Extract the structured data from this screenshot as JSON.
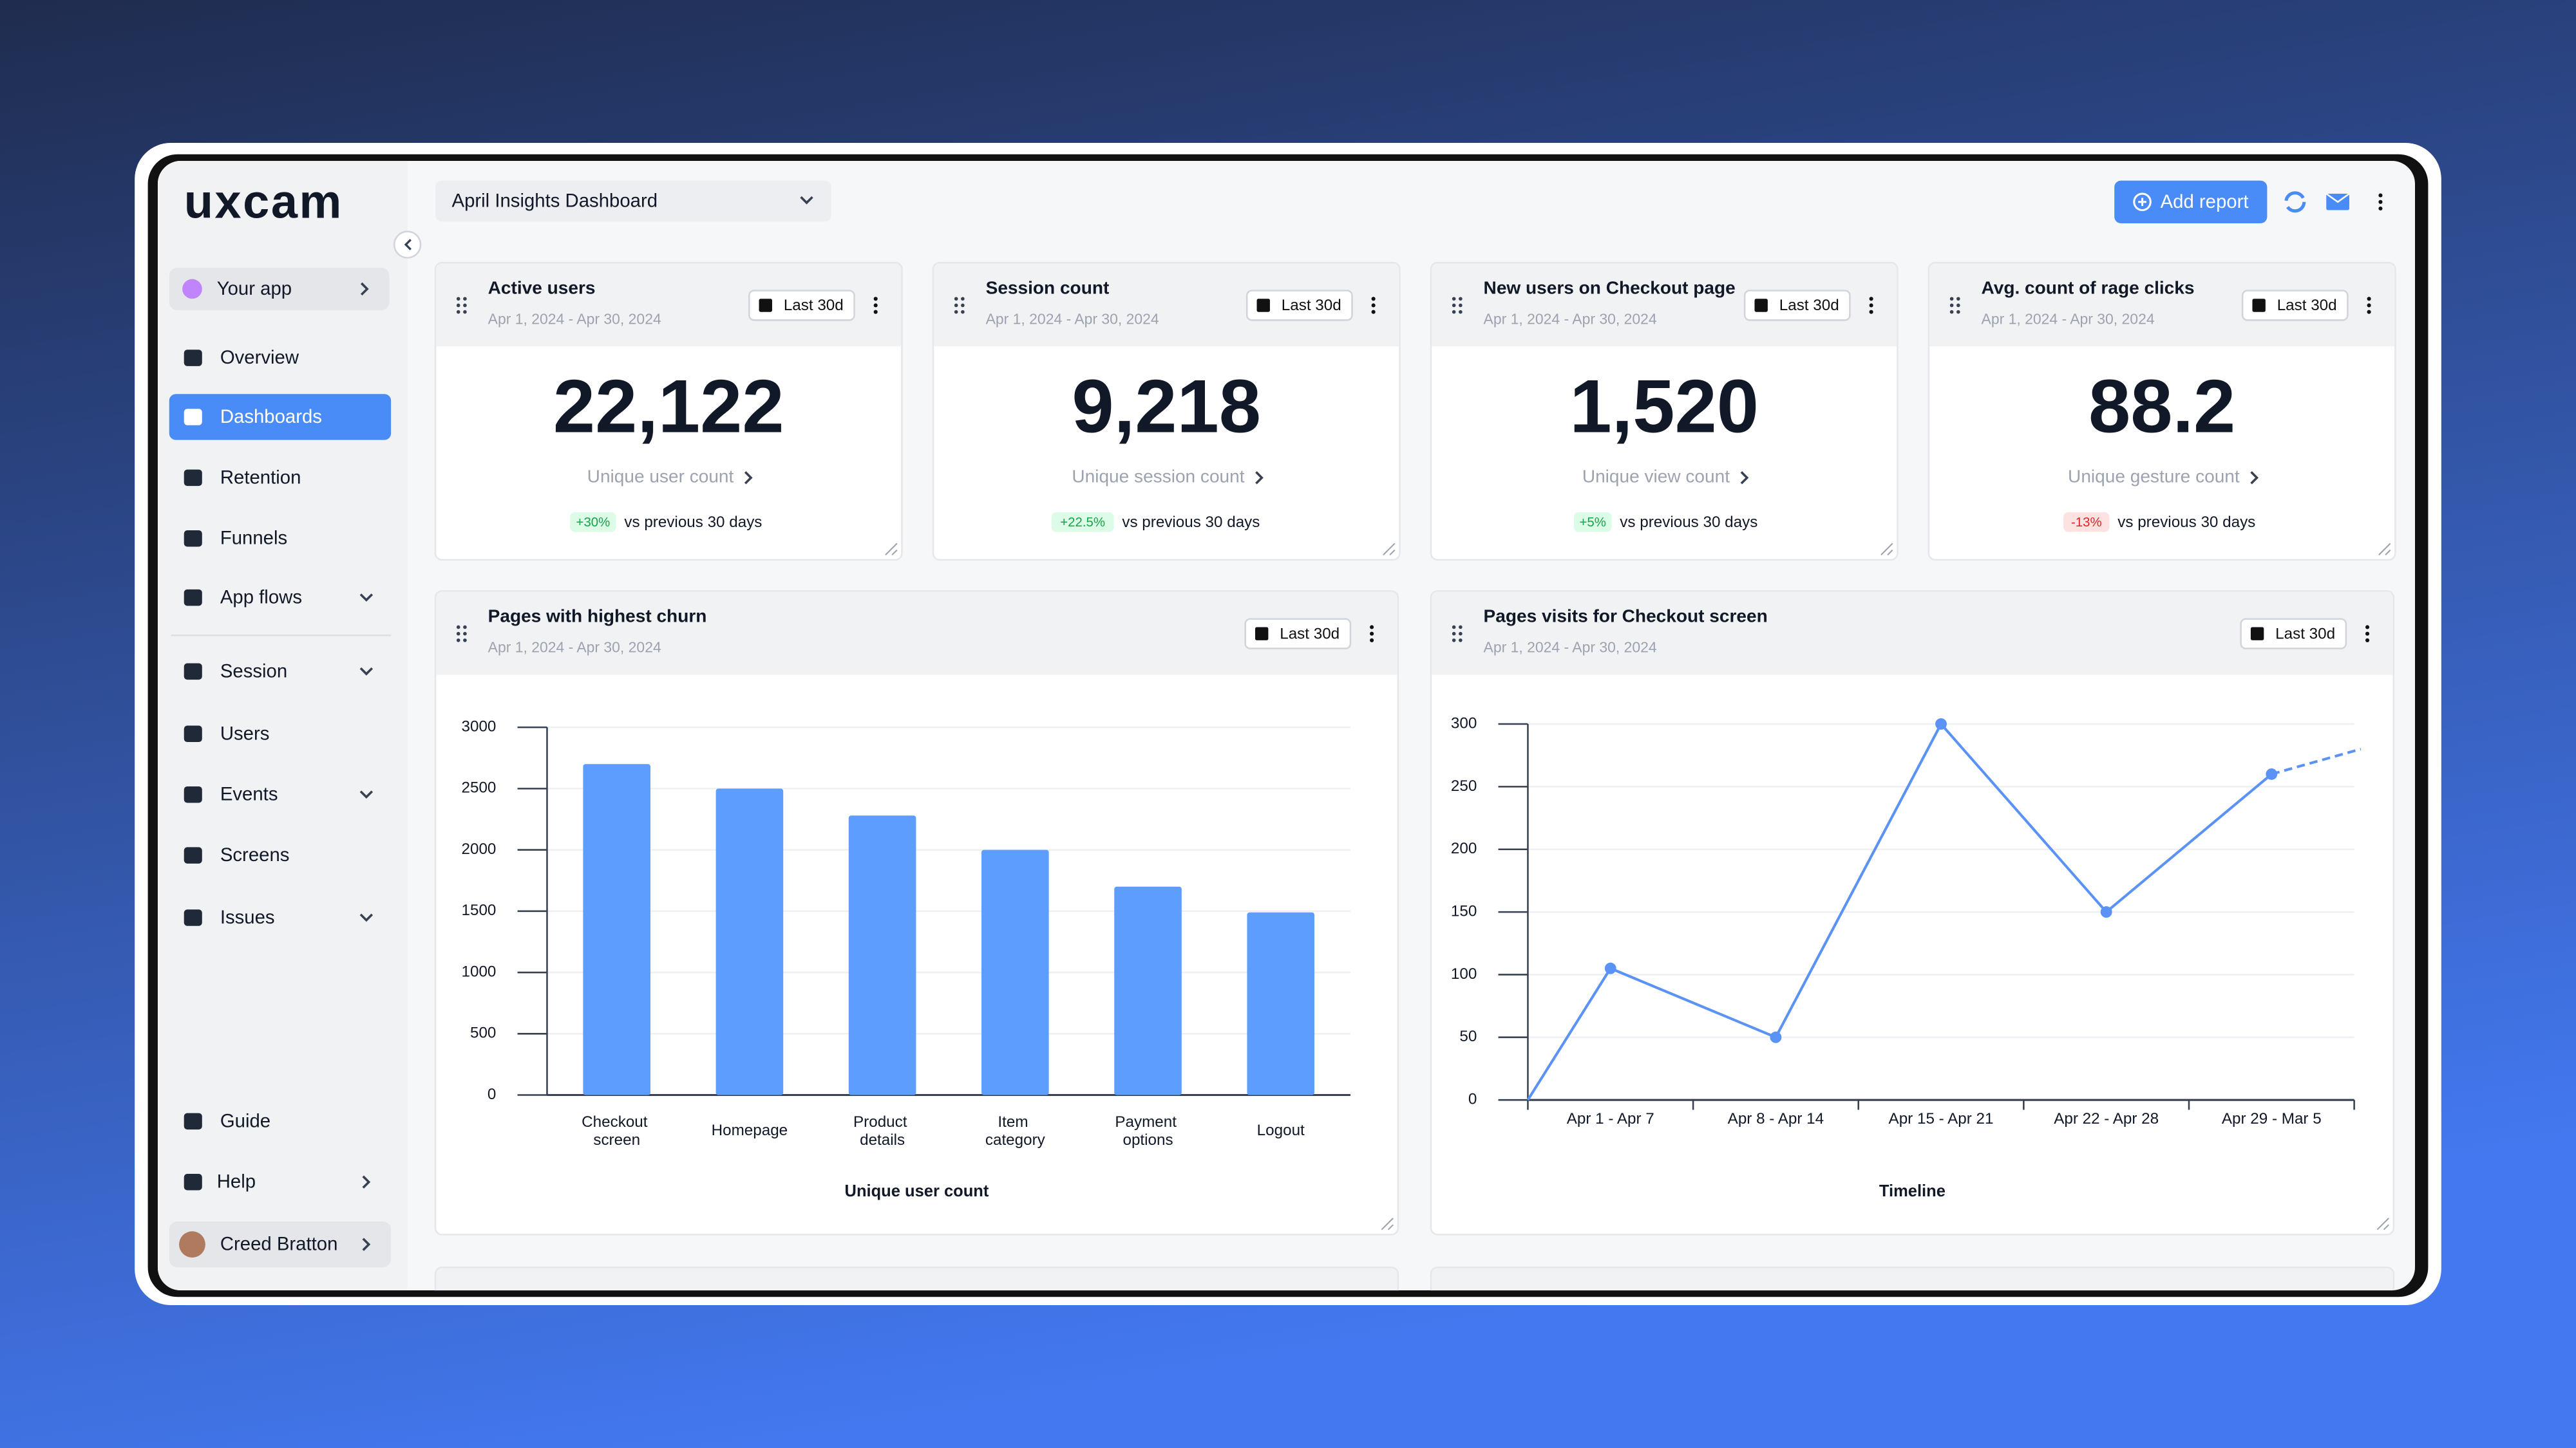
{
  "sidebar": {
    "logo": "uxcam",
    "app": "Your app",
    "nav": [
      {
        "label": "Overview"
      },
      {
        "label": "Dashboards",
        "active": true
      },
      {
        "label": "Retention"
      },
      {
        "label": "Funnels"
      },
      {
        "label": "App flows",
        "expandable": true
      },
      {
        "label": "Session",
        "expandable": true
      },
      {
        "label": "Users"
      },
      {
        "label": "Events",
        "expandable": true
      },
      {
        "label": "Screens"
      },
      {
        "label": "Issues",
        "expandable": true
      }
    ],
    "footer_nav": [
      {
        "label": "Guide"
      },
      {
        "label": "Help"
      }
    ],
    "user": "Creed Bratton"
  },
  "header": {
    "dashboard": "April Insights Dashboard",
    "add_report": "Add report"
  },
  "kpis": [
    {
      "title": "Active users",
      "date": "Apr 1, 2024 - Apr 30, 2024",
      "range": "Last 30d",
      "value": "22,122",
      "metric": "Unique user count",
      "change": "+30%",
      "comparison": "vs previous 30 days"
    },
    {
      "title": "Session count",
      "date": "Apr 1, 2024 - Apr 30, 2024",
      "range": "Last 30d",
      "value": "9,218",
      "metric": "Unique session count",
      "change": "+22.5%",
      "comparison": "vs previous 30 days"
    },
    {
      "title": "New users on Checkout page",
      "date": "Apr 1, 2024 - Apr 30, 2024",
      "range": "Last 30d",
      "value": "1,520",
      "metric": "Unique view count",
      "change": "+5%",
      "comparison": "vs previous 30 days"
    },
    {
      "title": "Avg. count of rage clicks",
      "date": "Apr 1, 2024 - Apr 30, 2024",
      "range": "Last 30d",
      "value": "88.2",
      "metric": "Unique gesture count",
      "change": "-13%",
      "comparison": "vs previous 30 days"
    }
  ],
  "chart_data": [
    {
      "type": "bar",
      "title": "Pages with highest churn",
      "date": "Apr 1, 2024 - Apr 30, 2024",
      "range": "Last 30d",
      "categories": [
        "Checkout screen",
        "Homepage",
        "Product details",
        "Item category",
        "Payment options",
        "Logout"
      ],
      "values": [
        2700,
        2500,
        2280,
        2000,
        1700,
        1490
      ],
      "color": "#5c9dfd",
      "xlabel": "Unique user count",
      "ylim": [
        0,
        3000
      ],
      "yticks": [
        0,
        500,
        1000,
        1500,
        2000,
        2500,
        3000
      ],
      "grid": true
    },
    {
      "type": "line",
      "title": "Pages visits for Checkout screen",
      "date": "Apr 1, 2024 - Apr 30, 2024",
      "range": "Last 30d",
      "categories": [
        "Apr 1 - Apr 7",
        "Apr 8 - Apr 14",
        "Apr 15 - Apr 21",
        "Apr 22 - Apr 28",
        "Apr 29 - Mar 5"
      ],
      "start_value": 0,
      "values": [
        105,
        50,
        300,
        150,
        260
      ],
      "projected_value": 280,
      "color": "#5a93f5",
      "xlabel": "Timeline",
      "ylim": [
        0,
        300
      ],
      "yticks": [
        0,
        50,
        100,
        150,
        200,
        250,
        300
      ],
      "grid": true
    }
  ]
}
